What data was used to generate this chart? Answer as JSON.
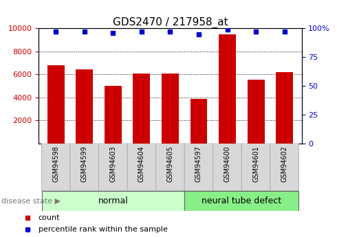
{
  "title": "GDS2470 / 217958_at",
  "samples": [
    "GSM94598",
    "GSM94599",
    "GSM94603",
    "GSM94604",
    "GSM94605",
    "GSM94597",
    "GSM94600",
    "GSM94601",
    "GSM94602"
  ],
  "counts": [
    6800,
    6450,
    5000,
    6100,
    6050,
    3850,
    9500,
    5550,
    6200
  ],
  "percentiles": [
    97,
    97,
    96,
    97,
    97,
    95,
    99,
    97,
    97
  ],
  "bar_color": "#cc0000",
  "dot_color": "#0000cc",
  "ylim_left": [
    0,
    10000
  ],
  "ylim_right": [
    0,
    100
  ],
  "yticks_left": [
    2000,
    4000,
    6000,
    8000,
    10000
  ],
  "yticks_right": [
    0,
    25,
    50,
    75,
    100
  ],
  "right_tick_labels": [
    "0",
    "25",
    "50",
    "75",
    "100%"
  ],
  "groups": [
    {
      "label": "normal",
      "n": 5,
      "color": "#ccffcc"
    },
    {
      "label": "neural tube defect",
      "n": 4,
      "color": "#88ee88"
    }
  ],
  "disease_state_label": "disease state",
  "legend_count_label": "count",
  "legend_percentile_label": "percentile rank within the sample",
  "tick_label_color_left": "#cc0000",
  "tick_label_color_right": "#0000cc",
  "title_fontsize": 11,
  "tick_fontsize": 8,
  "sample_label_fontsize": 7,
  "group_label_fontsize": 9,
  "legend_fontsize": 8,
  "disease_state_fontsize": 8
}
